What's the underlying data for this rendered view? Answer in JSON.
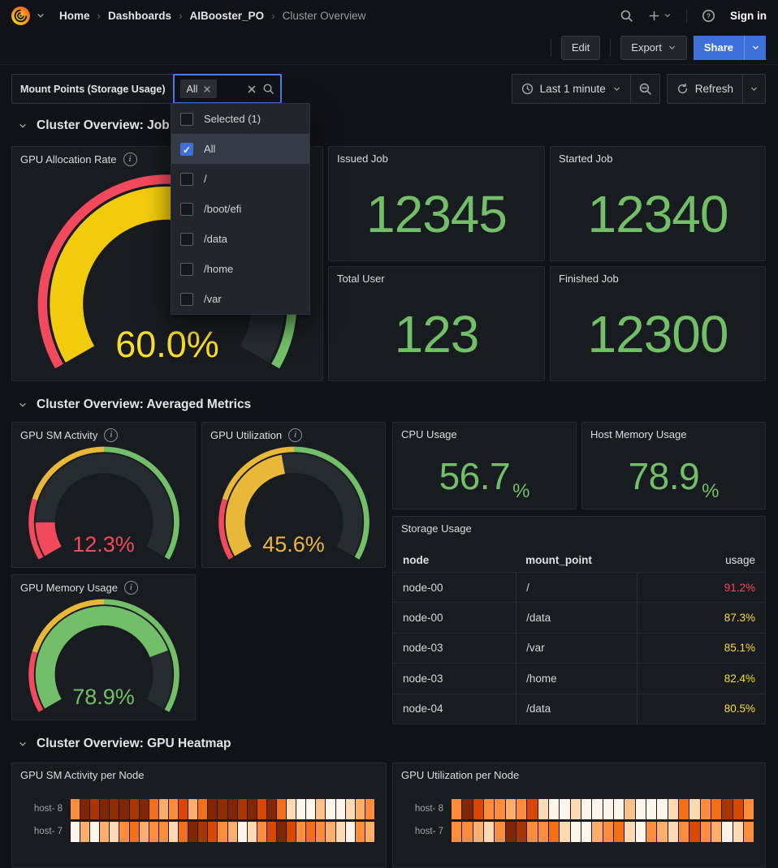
{
  "nav": {
    "breadcrumbs": [
      {
        "label": "Home",
        "current": false
      },
      {
        "label": "Dashboards",
        "current": false
      },
      {
        "label": "AIBooster_PO",
        "current": false
      },
      {
        "label": "Cluster Overview",
        "current": true
      }
    ],
    "sign_in": "Sign in"
  },
  "actions": {
    "edit": "Edit",
    "export": "Export",
    "share": "Share"
  },
  "filter": {
    "label": "Mount Points (Storage Usage)",
    "selected_tag": "All",
    "dropdown_items": [
      {
        "label": "Selected (1)",
        "checked": false,
        "highlighted": false
      },
      {
        "label": "All",
        "checked": true,
        "highlighted": true
      },
      {
        "label": "/",
        "checked": false,
        "highlighted": false
      },
      {
        "label": "/boot/efi",
        "checked": false,
        "highlighted": false
      },
      {
        "label": "/data",
        "checked": false,
        "highlighted": false
      },
      {
        "label": "/home",
        "checked": false,
        "highlighted": false
      },
      {
        "label": "/var",
        "checked": false,
        "highlighted": false
      }
    ]
  },
  "timebar": {
    "range": "Last 1 minute",
    "refresh": "Refresh"
  },
  "sections": {
    "jobs": "Cluster Overview: Job Metrics",
    "averaged": "Cluster Overview: Averaged Metrics",
    "heatmap": "Cluster Overview: GPU Heatmap"
  },
  "theme": {
    "accent": "#3d71d9",
    "green": "#73bf69",
    "yellow": "#fade2a",
    "amber": "#eab839",
    "red": "#f2495c"
  },
  "panels": {
    "gauge_allocation": {
      "title": "GPU Allocation Rate",
      "value_text": "60.0%",
      "pct": 60,
      "fill": "#f2cc0c",
      "value_color": "#fade2a",
      "track": "#262a31",
      "thresholds": [
        {
          "to": 55,
          "color": "#f2495c"
        },
        {
          "to": 80,
          "color": "#eab839"
        },
        {
          "to": 100,
          "color": "#73bf69"
        }
      ]
    },
    "stat_issued": {
      "title": "Issued Job",
      "value": "12345"
    },
    "stat_started": {
      "title": "Started Job",
      "value": "12340"
    },
    "stat_totaluser": {
      "title": "Total User",
      "value": "123"
    },
    "stat_finished": {
      "title": "Finished Job",
      "value": "12300"
    },
    "gauge_sm": {
      "title": "GPU SM Activity",
      "value_text": "12.3%",
      "pct": 12.3,
      "fill": "#f2495c",
      "value_color": "#f2495c",
      "track": "#262a31",
      "thresholds": [
        {
          "to": 20,
          "color": "#f2495c"
        },
        {
          "to": 50,
          "color": "#eab839"
        },
        {
          "to": 100,
          "color": "#73bf69"
        }
      ]
    },
    "gauge_util": {
      "title": "GPU Utilization",
      "value_text": "45.6%",
      "pct": 45.6,
      "fill": "#eab839",
      "value_color": "#eab839",
      "track": "#262a31",
      "thresholds": [
        {
          "to": 20,
          "color": "#f2495c"
        },
        {
          "to": 50,
          "color": "#eab839"
        },
        {
          "to": 100,
          "color": "#73bf69"
        }
      ]
    },
    "gauge_mem": {
      "title": "GPU Memory Usage",
      "value_text": "78.9%",
      "pct": 78.9,
      "fill": "#73bf69",
      "value_color": "#73bf69",
      "track": "#262a31",
      "thresholds": [
        {
          "to": 20,
          "color": "#f2495c"
        },
        {
          "to": 50,
          "color": "#eab839"
        },
        {
          "to": 100,
          "color": "#73bf69"
        }
      ]
    },
    "stat_cpu": {
      "title": "CPU Usage",
      "value": "56.7",
      "unit": "%"
    },
    "stat_hostmem": {
      "title": "Host Memory Usage",
      "value": "78.9",
      "unit": "%"
    },
    "table_storage": {
      "title": "Storage Usage",
      "columns": [
        "node",
        "mount_point",
        "usage"
      ],
      "rows": [
        {
          "node": "node-00",
          "mount_point": "/",
          "usage": "91.2%",
          "usage_color": "#f2495c"
        },
        {
          "node": "node-00",
          "mount_point": "/data",
          "usage": "87.3%",
          "usage_color": "#fade2a"
        },
        {
          "node": "node-03",
          "mount_point": "/var",
          "usage": "85.1%",
          "usage_color": "#fade2a"
        },
        {
          "node": "node-03",
          "mount_point": "/home",
          "usage": "82.4%",
          "usage_color": "#fade2a"
        },
        {
          "node": "node-04",
          "mount_point": "/data",
          "usage": "80.5%",
          "usage_color": "#fade2a"
        }
      ]
    },
    "heatmap_sm": {
      "title": "GPU SM Activity per Node",
      "rows": [
        {
          "label": "host- 8",
          "cells": [
            "#fd8d3c",
            "#7f2704",
            "#a63603",
            "#7f2704",
            "#8c2d04",
            "#7f2704",
            "#a63603",
            "#7f2704",
            "#f3701b",
            "#fdae6b",
            "#fd8d3c",
            "#d94801",
            "#fdae6b",
            "#f3701b",
            "#7f2704",
            "#8c2d04",
            "#7f2704",
            "#a63603",
            "#7f2704",
            "#d94801",
            "#7f2704",
            "#f3701b",
            "#fdd9b4",
            "#fff5eb",
            "#fff5eb",
            "#fdc28c",
            "#fff5eb",
            "#fff5eb",
            "#fdd9b4",
            "#fdae6b",
            "#fd8d3c"
          ]
        },
        {
          "label": "host- 7",
          "cells": [
            "#fff5eb",
            "#fdae6b",
            "#fff5eb",
            "#fdae6b",
            "#fdd9b4",
            "#fd8d3c",
            "#f3701b",
            "#fdae6b",
            "#fd8d3c",
            "#fd8d3c",
            "#fdd9b4",
            "#f3701b",
            "#7f2704",
            "#a63603",
            "#d94801",
            "#fd8d3c",
            "#fdae6b",
            "#fff5eb",
            "#fdd9b4",
            "#fd8d3c",
            "#d94801",
            "#7f2704",
            "#d94801",
            "#fd8d3c",
            "#f3701b",
            "#fd8d3c",
            "#fdae6b",
            "#fdd9b4",
            "#fff5eb",
            "#fd8d3c",
            "#fdae6b"
          ]
        }
      ]
    },
    "heatmap_util": {
      "title": "GPU Utilization per Node",
      "rows": [
        {
          "label": "host- 8",
          "cells": [
            "#fd8d3c",
            "#7f2704",
            "#d94801",
            "#fd8d3c",
            "#fd8d3c",
            "#fdae6b",
            "#fd8d3c",
            "#d94801",
            "#fdd9b4",
            "#fff5eb",
            "#fff5eb",
            "#fdd9b4",
            "#fff5eb",
            "#fff5eb",
            "#fff5eb",
            "#fff5eb",
            "#fdc28c",
            "#fff5eb",
            "#fff5eb",
            "#fff5eb",
            "#fdd9b4",
            "#f3701b",
            "#fdd9b4",
            "#fd8d3c",
            "#f3701b",
            "#a63603",
            "#d94801",
            "#fd8d3c"
          ]
        },
        {
          "label": "host- 7",
          "cells": [
            "#fd8d3c",
            "#fd8d3c",
            "#fdae6b",
            "#fdd9b4",
            "#fd8d3c",
            "#7f2704",
            "#a63603",
            "#fd8d3c",
            "#fd8d3c",
            "#f3701b",
            "#fdd9b4",
            "#fff5eb",
            "#fff5eb",
            "#fdae6b",
            "#fd8d3c",
            "#f3701b",
            "#fdd9b4",
            "#fff5eb",
            "#fd8d3c",
            "#fdae6b",
            "#fdd9b4",
            "#fd8d3c",
            "#d94801",
            "#fd8d3c",
            "#fdae6b",
            "#fff5eb",
            "#fdd9b4",
            "#fd8d3c"
          ]
        }
      ]
    }
  }
}
